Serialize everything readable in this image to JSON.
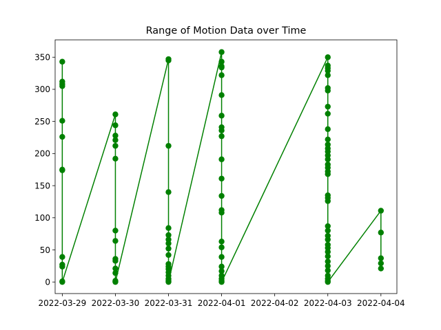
{
  "chart_data": {
    "type": "line",
    "title": "Range of Motion Data over Time",
    "xlabel": "",
    "ylabel": "",
    "xlim": [
      "2022-03-28T20:46:00",
      "2022-04-04T07:13:00"
    ],
    "ylim": [
      -18,
      377
    ],
    "grid": false,
    "legend": "none",
    "color": "#008000",
    "x_ticks": [
      "2022-03-29",
      "2022-03-30",
      "2022-03-31",
      "2022-04-01",
      "2022-04-02",
      "2022-04-03",
      "2022-04-04"
    ],
    "y_ticks": [
      0,
      50,
      100,
      150,
      200,
      250,
      300,
      350
    ],
    "series": [
      {
        "name": "",
        "points": [
          {
            "x": "2022-03-29",
            "y": [
              343,
              312,
              308,
              305,
              251,
              226,
              175,
              174,
              39,
              27,
              24,
              1,
              0
            ]
          },
          {
            "x": "2022-03-30",
            "y": [
              261,
              244,
              228,
              221,
              212,
              192,
              80,
              64,
              36,
              33,
              21,
              14,
              2,
              1,
              0
            ]
          },
          {
            "x": "2022-03-31",
            "y": [
              347,
              345,
              212,
              140,
              84,
              73,
              66,
              60,
              52,
              42,
              28,
              24,
              20,
              15,
              10,
              5,
              3,
              1,
              0
            ]
          },
          {
            "x": "2022-04-01",
            "y": [
              358,
              343,
              336,
              334,
              322,
              291,
              259,
              241,
              236,
              227,
              191,
              161,
              134,
              112,
              108,
              63,
              54,
              39,
              24,
              17,
              10,
              5,
              2,
              0
            ]
          },
          {
            "x": "2022-04-03",
            "y": [
              350,
              337,
              333,
              329,
              322,
              302,
              298,
              273,
              262,
              238,
              222,
              214,
              208,
              203,
              197,
              191,
              183,
              178,
              172,
              168,
              135,
              131,
              126,
              87,
              80,
              72,
              66,
              58,
              53,
              47,
              40,
              32,
              25,
              18,
              10,
              5,
              2,
              0
            ]
          },
          {
            "x": "2022-04-04",
            "y": [
              111,
              77,
              37,
              29,
              21
            ]
          }
        ]
      }
    ]
  }
}
